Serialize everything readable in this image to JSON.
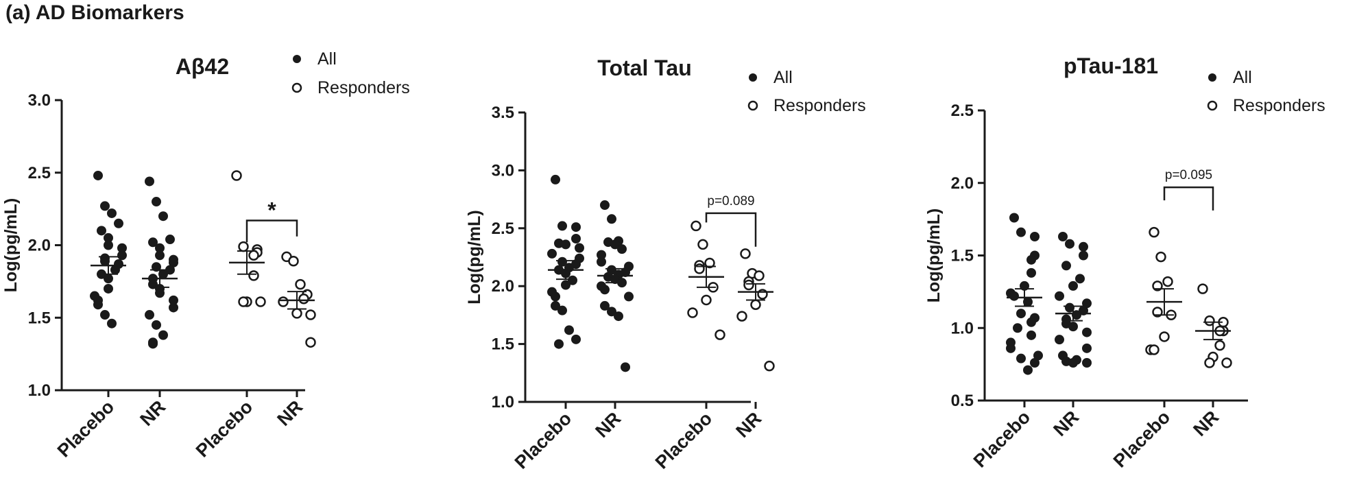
{
  "figure": {
    "title": "(a) AD Biomarkers"
  },
  "legend": {
    "all": "All",
    "responders": "Responders"
  },
  "colors": {
    "ink": "#1a1a1a",
    "background": "#ffffff"
  },
  "chart_data": [
    {
      "type": "scatter",
      "subtype": "dot-plot with mean ± SEM",
      "title": "Aβ42",
      "ylabel": "Log(pg/mL)",
      "ylim": [
        1.0,
        3.0
      ],
      "yticks": [
        "1.0",
        "1.5",
        "2.0",
        "2.5",
        "3.0"
      ],
      "categories": [
        "Placebo",
        "NR",
        "Placebo",
        "NR"
      ],
      "legend_position": "top-right",
      "series": [
        {
          "name": "All",
          "marker": "filled",
          "groups": [
            {
              "category": "Placebo",
              "mean": 1.86,
              "sem": 0.06,
              "values": [
                2.48,
                2.27,
                2.22,
                2.15,
                2.1,
                2.05,
                2.0,
                1.98,
                1.93,
                1.91,
                1.89,
                1.87,
                1.83,
                1.8,
                1.77,
                1.7,
                1.65,
                1.62,
                1.59,
                1.52,
                1.46
              ]
            },
            {
              "category": "NR",
              "mean": 1.77,
              "sem": 0.06,
              "values": [
                2.44,
                2.3,
                2.2,
                2.04,
                2.02,
                1.98,
                1.93,
                1.9,
                1.88,
                1.85,
                1.83,
                1.8,
                1.77,
                1.73,
                1.7,
                1.67,
                1.62,
                1.57,
                1.52,
                1.45,
                1.38,
                1.33,
                1.32
              ]
            }
          ]
        },
        {
          "name": "Responders",
          "marker": "open",
          "groups": [
            {
              "category": "Placebo",
              "mean": 1.88,
              "sem": 0.08,
              "values": [
                2.48,
                1.99,
                1.97,
                1.95,
                1.93,
                1.79,
                1.61,
                1.61,
                1.61
              ]
            },
            {
              "category": "NR",
              "mean": 1.62,
              "sem": 0.06,
              "values": [
                1.92,
                1.89,
                1.73,
                1.66,
                1.63,
                1.61,
                1.53,
                1.52,
                1.33
              ]
            }
          ]
        }
      ],
      "annotation": {
        "text": "*",
        "between": [
          2,
          3
        ],
        "bar_y": 2.17,
        "left_y": 2.02,
        "right_y": 2.06
      }
    },
    {
      "type": "scatter",
      "subtype": "dot-plot with mean ± SEM",
      "title": "Total Tau",
      "ylabel": "Log(pg/mL)",
      "ylim": [
        1.0,
        3.5
      ],
      "yticks": [
        "1.0",
        "1.5",
        "2.0",
        "2.5",
        "3.0",
        "3.5"
      ],
      "categories": [
        "Placebo",
        "NR",
        "Placebo",
        "NR"
      ],
      "legend_position": "top-right",
      "series": [
        {
          "name": "All",
          "marker": "filled",
          "groups": [
            {
              "category": "Placebo",
              "mean": 2.14,
              "sem": 0.08,
              "values": [
                2.92,
                2.52,
                2.51,
                2.41,
                2.37,
                2.36,
                2.33,
                2.28,
                2.24,
                2.21,
                2.19,
                2.16,
                2.14,
                2.11,
                2.05,
                2.01,
                1.95,
                1.91,
                1.83,
                1.79,
                1.62,
                1.54,
                1.5
              ]
            },
            {
              "category": "NR",
              "mean": 2.09,
              "sem": 0.06,
              "values": [
                2.7,
                2.58,
                2.39,
                2.38,
                2.36,
                2.32,
                2.27,
                2.21,
                2.17,
                2.14,
                2.12,
                2.1,
                2.08,
                2.06,
                2.03,
                2.0,
                1.97,
                1.91,
                1.83,
                1.78,
                1.74,
                1.3
              ]
            }
          ]
        },
        {
          "name": "Responders",
          "marker": "open",
          "groups": [
            {
              "category": "Placebo",
              "mean": 2.08,
              "sem": 0.09,
              "values": [
                2.52,
                2.36,
                2.2,
                2.18,
                2.15,
                1.99,
                1.88,
                1.77,
                1.58
              ]
            },
            {
              "category": "NR",
              "mean": 1.95,
              "sem": 0.07,
              "values": [
                2.28,
                2.11,
                2.09,
                2.04,
                2.01,
                1.93,
                1.84,
                1.74,
                1.31
              ]
            }
          ]
        }
      ],
      "annotation": {
        "text": "p=0.089",
        "between": [
          2,
          3
        ],
        "bar_y": 2.63,
        "left_y": 2.55,
        "right_y": 2.34
      }
    },
    {
      "type": "scatter",
      "subtype": "dot-plot with mean ± SEM",
      "title": "pTau-181",
      "ylabel": "Log(pg/mL)",
      "ylim": [
        0.5,
        2.5
      ],
      "yticks": [
        "0.5",
        "1.0",
        "1.5",
        "2.0",
        "2.5"
      ],
      "categories": [
        "Placebo",
        "NR",
        "Placebo",
        "NR"
      ],
      "legend_position": "top-right",
      "series": [
        {
          "name": "All",
          "marker": "filled",
          "groups": [
            {
              "category": "Placebo",
              "mean": 1.21,
              "sem": 0.06,
              "values": [
                1.76,
                1.66,
                1.63,
                1.5,
                1.47,
                1.38,
                1.29,
                1.24,
                1.22,
                1.18,
                1.1,
                1.07,
                1.04,
                1.0,
                0.95,
                0.9,
                0.86,
                0.81,
                0.79,
                0.76,
                0.71
              ]
            },
            {
              "category": "NR",
              "mean": 1.1,
              "sem": 0.05,
              "values": [
                1.63,
                1.58,
                1.56,
                1.5,
                1.43,
                1.34,
                1.29,
                1.22,
                1.17,
                1.14,
                1.12,
                1.09,
                1.06,
                1.03,
                1.01,
                0.97,
                0.92,
                0.86,
                0.81,
                0.78,
                0.77,
                0.76,
                0.76
              ]
            }
          ]
        },
        {
          "name": "Responders",
          "marker": "open",
          "groups": [
            {
              "category": "Placebo",
              "mean": 1.18,
              "sem": 0.09,
              "values": [
                1.66,
                1.49,
                1.32,
                1.29,
                1.11,
                1.09,
                0.94,
                0.85,
                0.85
              ]
            },
            {
              "category": "NR",
              "mean": 0.98,
              "sem": 0.06,
              "values": [
                1.27,
                1.05,
                1.04,
                0.98,
                0.98,
                0.88,
                0.8,
                0.76,
                0.76
              ]
            }
          ]
        }
      ],
      "annotation": {
        "text": "p=0.095",
        "between": [
          2,
          3
        ],
        "bar_y": 1.97,
        "left_y": 1.88,
        "right_y": 1.81
      }
    }
  ]
}
